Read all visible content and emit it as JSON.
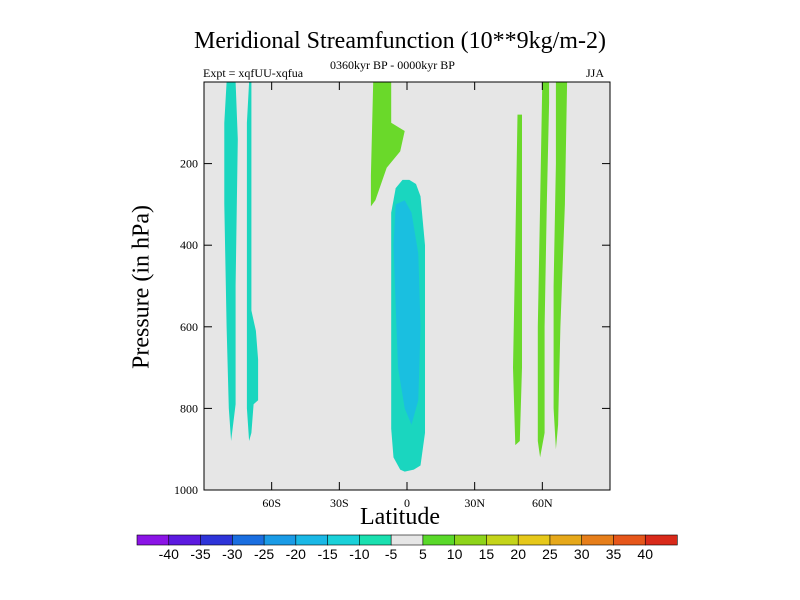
{
  "chart_data": {
    "type": "contour",
    "title": "Meridional Streamfunction (10**9kg/m-2)",
    "subtitle": "0360kyr BP - 0000kyr BP",
    "experiment": "Expt = xqfUU-xqfua",
    "season": "JJA",
    "xlabel": "Latitude",
    "ylabel": "Pressure (in hPa)",
    "xlim": [
      -90,
      90
    ],
    "ylim": [
      1000,
      0
    ],
    "xticks": [
      {
        "value": -60,
        "label": "60S"
      },
      {
        "value": -30,
        "label": "30S"
      },
      {
        "value": 0,
        "label": "0"
      },
      {
        "value": 30,
        "label": "30N"
      },
      {
        "value": 60,
        "label": "60N"
      }
    ],
    "yticks": [
      {
        "value": 200,
        "label": "200"
      },
      {
        "value": 400,
        "label": "400"
      },
      {
        "value": 600,
        "label": "600"
      },
      {
        "value": 800,
        "label": "800"
      },
      {
        "value": 1000,
        "label": "1000"
      }
    ],
    "background_fill": "#e6e6e6",
    "regions": [
      {
        "name": "negative-cell-sh-high-lat",
        "level": -10,
        "color": "#1ad6bf",
        "points": [
          [
            -80,
            0
          ],
          [
            -76,
            0
          ],
          [
            -75,
            140
          ],
          [
            -76,
            500
          ],
          [
            -76,
            790
          ],
          [
            -78,
            880
          ],
          [
            -79,
            800
          ],
          [
            -80,
            600
          ],
          [
            -81,
            300
          ],
          [
            -81,
            100
          ]
        ]
      },
      {
        "name": "negative-cell-sh-mid-lat",
        "level": -10,
        "color": "#1ad6bf",
        "points": [
          [
            -70,
            0
          ],
          [
            -69,
            0
          ],
          [
            -69,
            560
          ],
          [
            -67,
            610
          ],
          [
            -66,
            680
          ],
          [
            -66,
            780
          ],
          [
            -68,
            790
          ],
          [
            -69,
            860
          ],
          [
            -70,
            880
          ],
          [
            -71,
            800
          ],
          [
            -71,
            600
          ],
          [
            -71,
            300
          ],
          [
            -71,
            100
          ]
        ]
      },
      {
        "name": "negative-cell-equatorial",
        "level": -10,
        "color": "#1ad6bf",
        "points": [
          [
            -5,
            260
          ],
          [
            -2,
            240
          ],
          [
            1,
            240
          ],
          [
            4,
            250
          ],
          [
            6,
            280
          ],
          [
            8,
            400
          ],
          [
            8,
            600
          ],
          [
            8,
            860
          ],
          [
            6,
            940
          ],
          [
            3,
            950
          ],
          [
            -1,
            955
          ],
          [
            -3,
            950
          ],
          [
            -6,
            920
          ],
          [
            -7,
            850
          ],
          [
            -7,
            500
          ],
          [
            -7,
            320
          ]
        ]
      },
      {
        "name": "negative-core-equatorial",
        "level": -15,
        "color": "#1abfe0",
        "points": [
          [
            -5,
            300
          ],
          [
            -1,
            290
          ],
          [
            2,
            320
          ],
          [
            5,
            420
          ],
          [
            6,
            600
          ],
          [
            5,
            780
          ],
          [
            2,
            840
          ],
          [
            -1,
            800
          ],
          [
            -4,
            700
          ],
          [
            -5,
            550
          ],
          [
            -6,
            400
          ]
        ]
      },
      {
        "name": "positive-cell-nh-upper-tropics",
        "level": 5,
        "color": "#6ad92a",
        "points": [
          [
            -15,
            0
          ],
          [
            -7,
            0
          ],
          [
            -7,
            100
          ],
          [
            -1,
            120
          ],
          [
            -3,
            170
          ],
          [
            -9,
            210
          ],
          [
            -14,
            290
          ],
          [
            -16,
            305
          ],
          [
            -16,
            230
          ]
        ]
      },
      {
        "name": "positive-cell-nh-50",
        "level": 5,
        "color": "#6ad92a",
        "points": [
          [
            49,
            80
          ],
          [
            51,
            80
          ],
          [
            51,
            400
          ],
          [
            51,
            700
          ],
          [
            50,
            880
          ],
          [
            48,
            890
          ],
          [
            47,
            700
          ],
          [
            48,
            400
          ]
        ]
      },
      {
        "name": "positive-cell-nh-60-left",
        "level": 5,
        "color": "#6ad92a",
        "points": [
          [
            60,
            0
          ],
          [
            63,
            0
          ],
          [
            63,
            50
          ],
          [
            62,
            300
          ],
          [
            61,
            600
          ],
          [
            61,
            860
          ],
          [
            59,
            920
          ],
          [
            58,
            880
          ],
          [
            58,
            600
          ],
          [
            59,
            300
          ]
        ]
      },
      {
        "name": "positive-cell-nh-60-right",
        "level": 5,
        "color": "#6ad92a",
        "points": [
          [
            66,
            0
          ],
          [
            71,
            0
          ],
          [
            70,
            300
          ],
          [
            68,
            600
          ],
          [
            67,
            840
          ],
          [
            66,
            900
          ],
          [
            65,
            800
          ],
          [
            65,
            500
          ],
          [
            66,
            200
          ]
        ]
      }
    ],
    "colorbar": {
      "levels": [
        "-40",
        "-35",
        "-30",
        "-25",
        "-20",
        "-15",
        "-10",
        "-5",
        "5",
        "10",
        "15",
        "20",
        "25",
        "30",
        "35",
        "40"
      ],
      "colors": [
        "#8b14e6",
        "#5c1ae0",
        "#2e34d9",
        "#1a6ee0",
        "#1a9be6",
        "#1ab8e6",
        "#1ad1d9",
        "#1ae0b0",
        "#e6e6e6",
        "#5ad92a",
        "#8ed41a",
        "#c4d41a",
        "#e6c81a",
        "#e6a81a",
        "#e67e1a",
        "#e6561a",
        "#d92a1a"
      ]
    }
  }
}
